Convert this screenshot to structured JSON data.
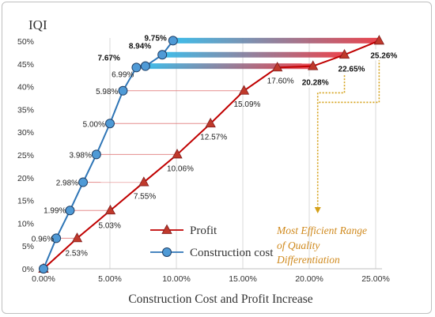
{
  "chart_data": {
    "type": "line",
    "ylabel": "IQI",
    "xlabel": "Construction Cost and Profit Increase",
    "xlim": [
      0,
      0.25
    ],
    "ylim": [
      0,
      0.5
    ],
    "x_ticks": [
      "0.00%",
      "5.00%",
      "10.00%",
      "15.00%",
      "20.00%",
      "25.00%"
    ],
    "y_ticks": [
      "0%",
      "5%",
      "10%",
      "15%",
      "20%",
      "25%",
      "30%",
      "35%",
      "40%",
      "45%",
      "50%"
    ],
    "grid": "vertical",
    "legend_placement": "bottom-center",
    "series": [
      {
        "name": "Construction cost",
        "marker": "circle",
        "color": "#2e75b6",
        "marker_fill": "#4f9ad6",
        "x": [
          0,
          0.0096,
          0.0199,
          0.0298,
          0.0398,
          0.05,
          0.0598,
          0.0699,
          0.0767,
          0.0894,
          0.0975
        ],
        "y": [
          0,
          0.067,
          0.128,
          0.19,
          0.251,
          0.319,
          0.391,
          0.442,
          0.445,
          0.47,
          0.501
        ],
        "labels": [
          "",
          "0.96%",
          "1.99%",
          "2.98%",
          "3.98%",
          "5.00%",
          "5.98%",
          "6.99%",
          "7.67%",
          "8.94%",
          "9.75%"
        ]
      },
      {
        "name": "Profit",
        "marker": "triangle",
        "color": "#c00000",
        "marker_fill": "#c0392b",
        "x": [
          0,
          0.0253,
          0.0503,
          0.0755,
          0.1006,
          0.1257,
          0.1509,
          0.176,
          0.2028,
          0.2265,
          0.2526
        ],
        "y": [
          0,
          0.067,
          0.128,
          0.19,
          0.251,
          0.319,
          0.391,
          0.442,
          0.445,
          0.47,
          0.501
        ],
        "labels": [
          "",
          "2.53%",
          "5.03%",
          "7.55%",
          "10.06%",
          "12.57%",
          "15.09%",
          "17.60%",
          "20.28%",
          "22.65%",
          "25.26%"
        ]
      }
    ],
    "annotation": [
      "Most Efficient Range",
      "of Quality",
      "Differentiation"
    ],
    "colors": {
      "connector_gradient_start": "#29b6e8",
      "connector_gradient_end": "#e8303a",
      "annotation": "#d08a1e"
    }
  }
}
